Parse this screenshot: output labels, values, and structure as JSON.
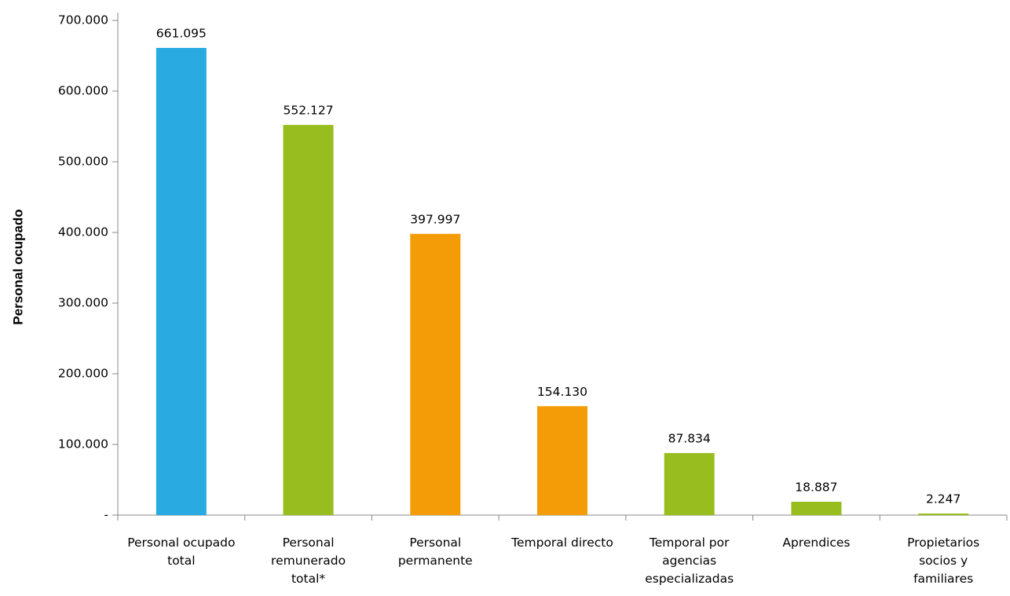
{
  "chart_data": {
    "type": "bar",
    "y_label": "Personal ocupado",
    "categories": [
      "Personal ocupado total",
      "Personal remunerado total*",
      "Personal permanente",
      "Temporal directo",
      "Temporal por agencias especializadas",
      "Aprendices",
      "Propietarios socios y familiares"
    ],
    "values": [
      661095,
      552127,
      397997,
      154130,
      87834,
      18887,
      2247
    ],
    "value_labels": [
      "661.095",
      "552.127",
      "397.997",
      "154.130",
      "87.834",
      "18.887",
      "2.247"
    ],
    "colors": [
      "#29abe2",
      "#97bd1f",
      "#f39c07",
      "#f39c07",
      "#97bd1f",
      "#97bd1f",
      "#97bd1f"
    ],
    "ylim": [
      0,
      700000
    ],
    "yticks": [
      {
        "value": 0,
        "label": "-"
      },
      {
        "value": 100000,
        "label": "100.000"
      },
      {
        "value": 200000,
        "label": "200.000"
      },
      {
        "value": 300000,
        "label": "300.000"
      },
      {
        "value": 400000,
        "label": "400.000"
      },
      {
        "value": 500000,
        "label": "500.000"
      },
      {
        "value": 600000,
        "label": "600.000"
      },
      {
        "value": 700000,
        "label": "700.000"
      }
    ],
    "grid": false
  }
}
